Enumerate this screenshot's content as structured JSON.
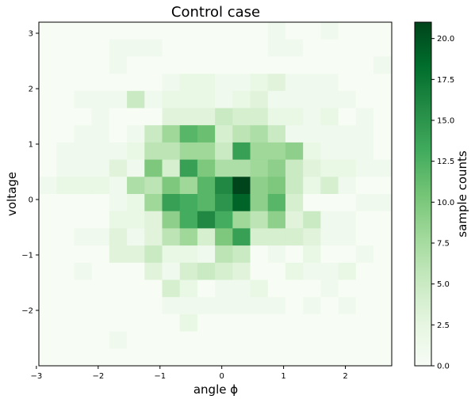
{
  "chart_data": {
    "type": "heatmap",
    "title": "Control case",
    "xlabel": "angle ϕ",
    "ylabel": "voltage",
    "colorbar_label": "sample counts",
    "colormap": [
      "#f7fcf5",
      "#e5f5e0",
      "#c7e9c0",
      "#a1d99b",
      "#74c476",
      "#41ab5d",
      "#238b45",
      "#006d2c",
      "#00441b"
    ],
    "xlim": [
      -2.96,
      2.75
    ],
    "ylim": [
      -3.0,
      3.2
    ],
    "x_edges": [
      -2.96,
      -2.675,
      -2.39,
      -2.105,
      -1.82,
      -1.535,
      -1.25,
      -0.965,
      -0.68,
      -0.395,
      -0.11,
      0.175,
      0.46,
      0.745,
      1.03,
      1.315,
      1.6,
      1.885,
      2.17,
      2.455,
      2.75
    ],
    "y_edges": [
      -3.0,
      -2.69,
      -2.38,
      -2.07,
      -1.76,
      -1.45,
      -1.14,
      -0.83,
      -0.52,
      -0.21,
      0.1,
      0.41,
      0.72,
      1.03,
      1.34,
      1.65,
      1.96,
      2.27,
      2.58,
      2.89,
      3.2
    ],
    "x_ticks": [
      -3,
      -2,
      -1,
      0,
      1,
      2
    ],
    "x_tick_labels": [
      "−3",
      "−2",
      "−1",
      "0",
      "1",
      "2"
    ],
    "y_ticks": [
      -2,
      -1,
      0,
      1,
      2,
      3
    ],
    "y_tick_labels": [
      "−2",
      "−1",
      "0",
      "1",
      "2",
      "3"
    ],
    "colorbar_range": [
      0.0,
      21.0
    ],
    "colorbar_ticks": [
      0.0,
      2.5,
      5.0,
      7.5,
      10.0,
      12.5,
      15.0,
      17.5,
      20.0
    ],
    "colorbar_tick_labels": [
      "0.0",
      "2.5",
      "5.0",
      "7.5",
      "10.0",
      "12.5",
      "15.0",
      "17.5",
      "20.0"
    ],
    "counts": [
      [
        0,
        0,
        0,
        0,
        0,
        0,
        0,
        0,
        0,
        0,
        0,
        0,
        0,
        1,
        0,
        0,
        1,
        0,
        0,
        0
      ],
      [
        0,
        0,
        0,
        0,
        1,
        1,
        1,
        0,
        0,
        0,
        0,
        0,
        0,
        1,
        1,
        0,
        0,
        0,
        0,
        0
      ],
      [
        0,
        0,
        0,
        0,
        1,
        0,
        0,
        0,
        0,
        0,
        0,
        0,
        0,
        0,
        0,
        0,
        0,
        0,
        0,
        1
      ],
      [
        0,
        0,
        0,
        0,
        0,
        0,
        0,
        1,
        2,
        2,
        1,
        1,
        2,
        3,
        1,
        1,
        1,
        0,
        0,
        0
      ],
      [
        0,
        0,
        1,
        1,
        1,
        5,
        1,
        2,
        2,
        2,
        1,
        2,
        3,
        1,
        1,
        1,
        1,
        1,
        0,
        0
      ],
      [
        0,
        0,
        0,
        1,
        0,
        0,
        0,
        3,
        3,
        3,
        5,
        4,
        4,
        2,
        2,
        1,
        2,
        0,
        1,
        0
      ],
      [
        0,
        0,
        1,
        1,
        0,
        1,
        5,
        8,
        12,
        11,
        4,
        6,
        7,
        5,
        1,
        1,
        1,
        1,
        1,
        0
      ],
      [
        0,
        1,
        1,
        1,
        1,
        2,
        6,
        6,
        8,
        8,
        5,
        14,
        8,
        8,
        9,
        2,
        1,
        1,
        1,
        0
      ],
      [
        0,
        1,
        1,
        1,
        3,
        1,
        10,
        4,
        14,
        10,
        7,
        7,
        8,
        9,
        5,
        3,
        2,
        2,
        1,
        1
      ],
      [
        1,
        2,
        2,
        2,
        1,
        7,
        6,
        10,
        8,
        12,
        16,
        21,
        9,
        10,
        5,
        2,
        4,
        1,
        0,
        0
      ],
      [
        0,
        0,
        0,
        0,
        1,
        2,
        8,
        14,
        13,
        12,
        15,
        19,
        9,
        12,
        4,
        0,
        0,
        0,
        1,
        1
      ],
      [
        0,
        0,
        0,
        0,
        2,
        2,
        3,
        9,
        13,
        16,
        13,
        8,
        6,
        9,
        3,
        5,
        1,
        1,
        0,
        0
      ],
      [
        0,
        0,
        1,
        1,
        3,
        1,
        3,
        6,
        8,
        4,
        10,
        14,
        4,
        4,
        4,
        3,
        1,
        1,
        0,
        0
      ],
      [
        0,
        0,
        0,
        0,
        3,
        3,
        5,
        2,
        2,
        1,
        6,
        5,
        0,
        1,
        0,
        2,
        0,
        0,
        1,
        0
      ],
      [
        0,
        0,
        1,
        0,
        0,
        0,
        3,
        1,
        4,
        5,
        4,
        3,
        0,
        0,
        2,
        1,
        1,
        2,
        0,
        0
      ],
      [
        0,
        0,
        0,
        0,
        0,
        0,
        0,
        4,
        2,
        0,
        1,
        1,
        2,
        0,
        0,
        0,
        1,
        0,
        0,
        0
      ],
      [
        0,
        0,
        0,
        0,
        0,
        0,
        0,
        1,
        1,
        1,
        1,
        1,
        1,
        1,
        0,
        1,
        0,
        1,
        0,
        0
      ],
      [
        0,
        0,
        0,
        0,
        0,
        0,
        0,
        0,
        2,
        0,
        0,
        0,
        0,
        0,
        0,
        0,
        0,
        0,
        0,
        0
      ],
      [
        0,
        0,
        0,
        0,
        1,
        0,
        0,
        0,
        0,
        0,
        0,
        0,
        0,
        0,
        0,
        0,
        0,
        0,
        0,
        0
      ],
      [
        0,
        0,
        0,
        0,
        0,
        0,
        0,
        0,
        0,
        0,
        0,
        0,
        0,
        0,
        0,
        0,
        0,
        0,
        0,
        0
      ]
    ]
  }
}
